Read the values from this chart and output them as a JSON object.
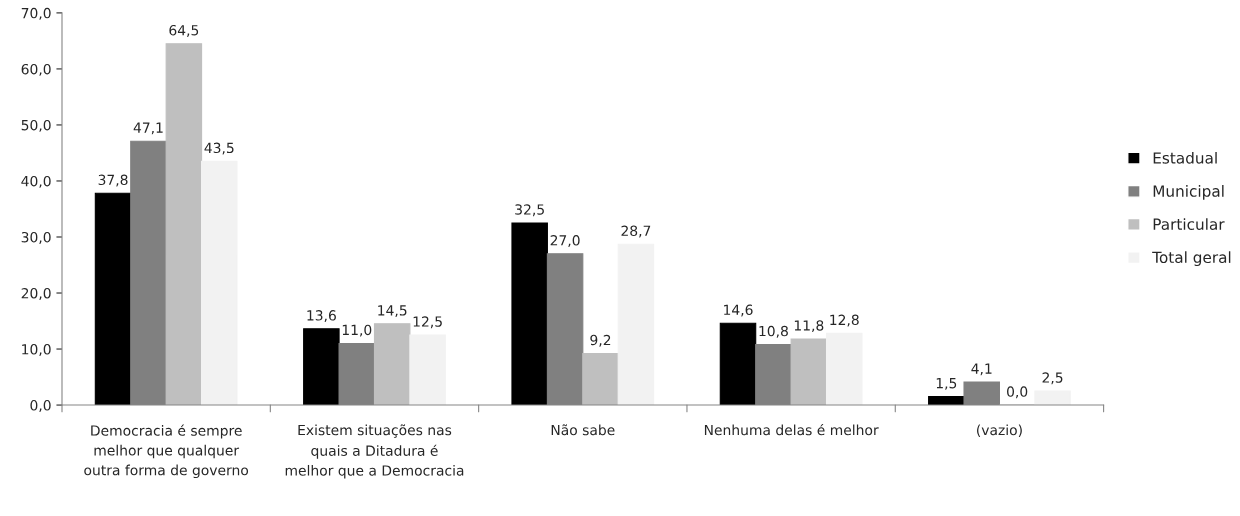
{
  "chart_data": {
    "type": "bar",
    "categories": [
      "Democracia é sempre melhor que qualquer outra forma de governo",
      "Existem situações nas quais a Ditadura é melhor que a Democracia",
      "Não sabe",
      "Nenhuma delas é melhor",
      "(vazio)"
    ],
    "series": [
      {
        "name": "Estadual",
        "color": "#000000",
        "values": [
          37.8,
          13.6,
          32.5,
          14.6,
          1.5
        ],
        "value_labels": [
          "37,8",
          "13,6",
          "32,5",
          "14,6",
          "1,5"
        ]
      },
      {
        "name": "Municipal",
        "color": "#808080",
        "values": [
          47.1,
          11.0,
          27.0,
          10.8,
          4.1
        ],
        "value_labels": [
          "47,1",
          "11,0",
          "27,0",
          "10,8",
          "4,1"
        ]
      },
      {
        "name": "Particular",
        "color": "#bfbfbf",
        "values": [
          64.5,
          14.5,
          9.2,
          11.8,
          0.0
        ],
        "value_labels": [
          "64,5",
          "14,5",
          "9,2",
          "11,8",
          "0,0"
        ]
      },
      {
        "name": "Total geral",
        "color": "#f2f2f2",
        "values": [
          43.5,
          12.5,
          28.7,
          12.8,
          2.5
        ],
        "value_labels": [
          "43,5",
          "12,5",
          "28,7",
          "12,8",
          "2,5"
        ]
      }
    ],
    "ylim": [
      0,
      70
    ],
    "yticks": [
      {
        "value": 0,
        "label": "0,0"
      },
      {
        "value": 10,
        "label": "10,0"
      },
      {
        "value": 20,
        "label": "20,0"
      },
      {
        "value": 30,
        "label": "30,0"
      },
      {
        "value": 40,
        "label": "40,0"
      },
      {
        "value": 50,
        "label": "50,0"
      },
      {
        "value": 60,
        "label": "60,0"
      },
      {
        "value": 70,
        "label": "70,0"
      }
    ],
    "grid": false,
    "legend": "right"
  }
}
